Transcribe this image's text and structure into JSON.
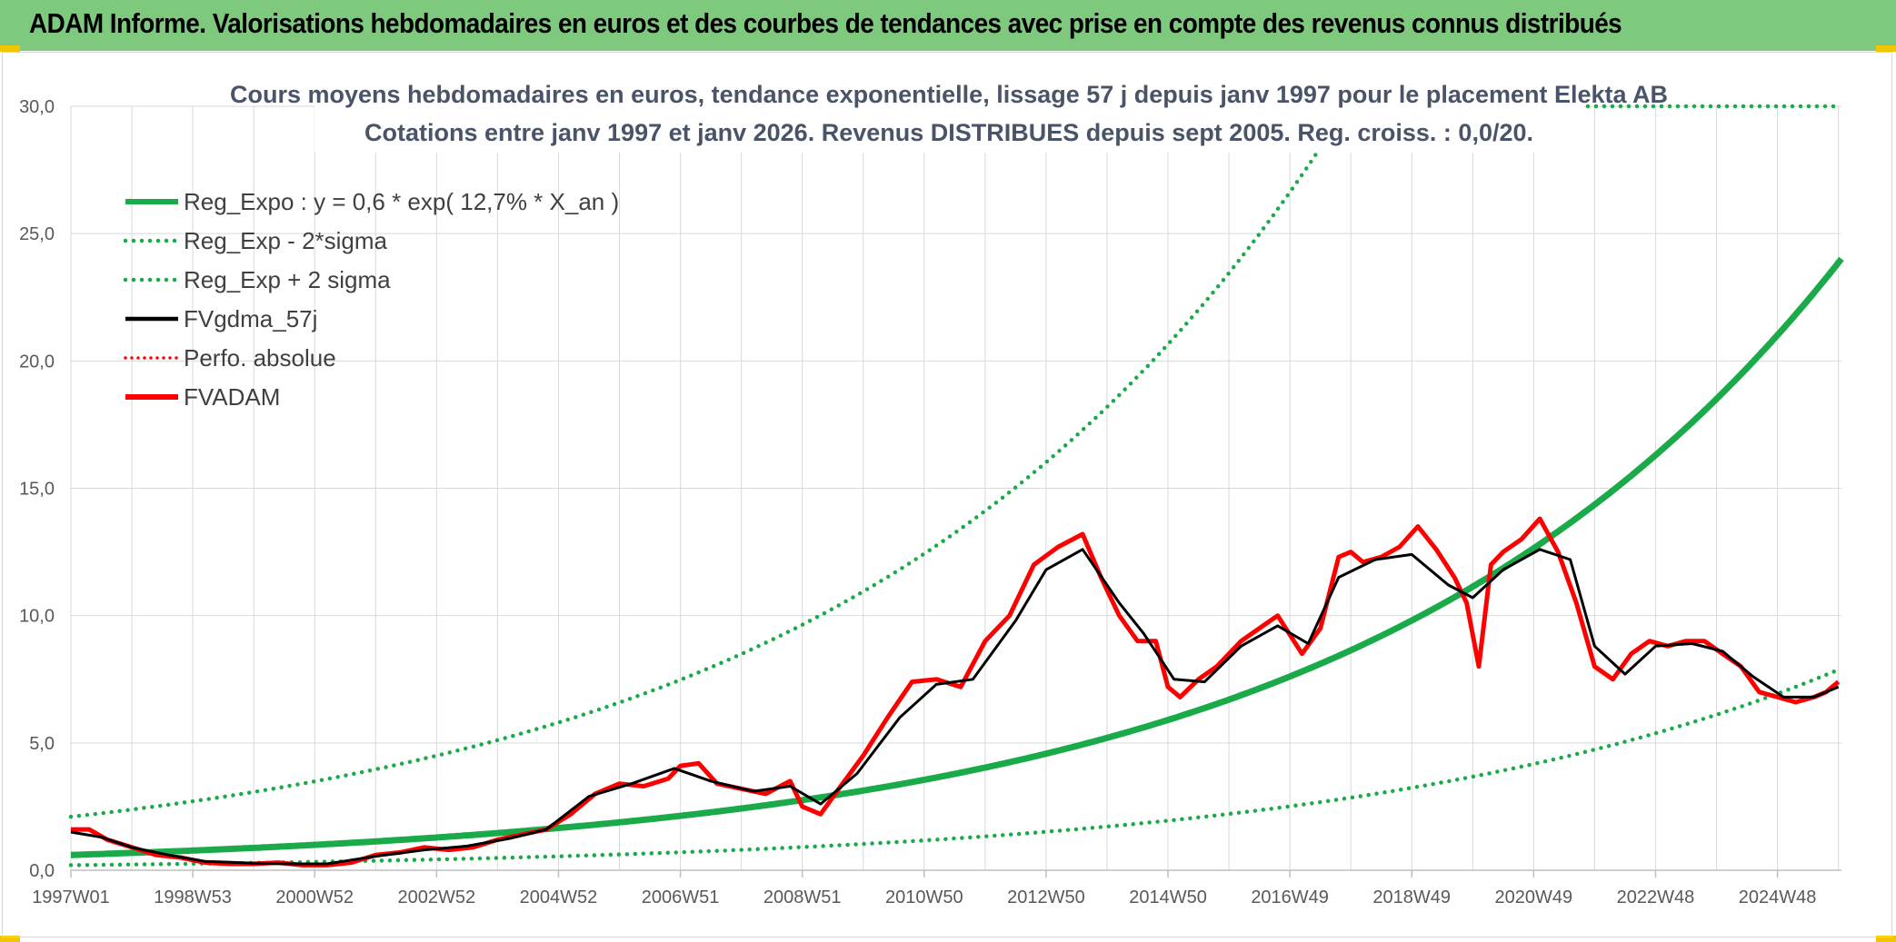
{
  "page": {
    "banner_title": "ADAM Informe. Valorisations hebdomadaires en euros et des courbes de tendances avec prise en compte des revenus connus distribués"
  },
  "colors": {
    "banner": "#7fc97f",
    "reg_expo": "#1aaa4a",
    "fvgdma": "#000000",
    "fvadam": "#ff0000",
    "perfo": "#ff0000",
    "grid": "#d9d9d9"
  },
  "chart_data": {
    "type": "line",
    "title": "Cours moyens hebdomadaires en euros, tendance exponentielle, lissage 57 j depuis janv 1997 pour le placement Elekta AB",
    "subtitle": "Cotations entre janv 1997 et janv 2026. Revenus DISTRIBUES depuis sept 2005. Reg. croiss. : 0,0/20.",
    "xlabel": "",
    "ylabel": "",
    "x_range": [
      1997.0,
      2026.05
    ],
    "ylim": [
      0,
      30
    ],
    "y_ticks": [
      "0,0",
      "5,0",
      "10,0",
      "15,0",
      "20,0",
      "25,0",
      "30,0"
    ],
    "x_tick_labels": [
      "1997W01",
      "1998W53",
      "2000W52",
      "2002W52",
      "2004W52",
      "2006W51",
      "2008W51",
      "2010W50",
      "2012W50",
      "2014W50",
      "2016W49",
      "2018W49",
      "2020W49",
      "2022W48",
      "2024W48"
    ],
    "x_tick_positions": [
      1997.0,
      1999.0,
      2001.0,
      2003.0,
      2005.0,
      2007.0,
      2009.0,
      2011.0,
      2013.0,
      2015.0,
      2017.0,
      2019.0,
      2021.0,
      2023.0,
      2025.0
    ],
    "legend": [
      "Reg_Expo : y = 0,6 * exp( 12,7% *  X_an )",
      "Reg_Exp - 2*sigma",
      "Reg_Exp + 2 sigma",
      "FVgdma_57j",
      "Perfo. absolue",
      "FVADAM"
    ],
    "regression": {
      "a": 0.6,
      "rate": 0.127,
      "start": 1997.0,
      "lower_factor": 0.33,
      "upper_factor": 3.5
    },
    "series": [
      {
        "name": "FVADAM",
        "x": [
          1997.0,
          1997.3,
          1997.6,
          1998.0,
          1998.4,
          1998.8,
          1999.2,
          1999.6,
          2000.0,
          2000.4,
          2000.8,
          2001.2,
          2001.6,
          2002.0,
          2002.4,
          2002.8,
          2003.2,
          2003.6,
          2004.0,
          2004.4,
          2004.8,
          2005.2,
          2005.6,
          2006.0,
          2006.4,
          2006.8,
          2007.0,
          2007.3,
          2007.6,
          2008.0,
          2008.4,
          2008.8,
          2009.0,
          2009.3,
          2009.6,
          2010.0,
          2010.4,
          2010.8,
          2011.2,
          2011.6,
          2012.0,
          2012.4,
          2012.8,
          2013.2,
          2013.6,
          2013.9,
          2014.2,
          2014.5,
          2014.8,
          2015.0,
          2015.2,
          2015.5,
          2015.8,
          2016.2,
          2016.5,
          2016.8,
          2017.2,
          2017.5,
          2017.8,
          2018.0,
          2018.2,
          2018.5,
          2018.8,
          2019.1,
          2019.4,
          2019.7,
          2019.9,
          2020.1,
          2020.3,
          2020.5,
          2020.8,
          2021.1,
          2021.4,
          2021.7,
          2022.0,
          2022.3,
          2022.6,
          2022.9,
          2023.2,
          2023.5,
          2023.8,
          2024.1,
          2024.4,
          2024.7,
          2025.0,
          2025.3,
          2025.6,
          2025.8,
          2026.0
        ],
        "values": [
          1.6,
          1.6,
          1.2,
          0.9,
          0.6,
          0.5,
          0.3,
          0.25,
          0.25,
          0.3,
          0.2,
          0.2,
          0.3,
          0.6,
          0.7,
          0.9,
          0.8,
          0.9,
          1.2,
          1.4,
          1.6,
          2.2,
          3.0,
          3.4,
          3.3,
          3.6,
          4.1,
          4.2,
          3.4,
          3.2,
          3.0,
          3.5,
          2.5,
          2.2,
          3.2,
          4.5,
          6.0,
          7.4,
          7.5,
          7.2,
          9.0,
          10.0,
          12.0,
          12.7,
          13.2,
          11.5,
          10.0,
          9.0,
          9.0,
          7.2,
          6.8,
          7.5,
          8.0,
          9.0,
          9.5,
          10.0,
          8.5,
          9.5,
          12.3,
          12.5,
          12.1,
          12.3,
          12.7,
          13.5,
          12.6,
          11.5,
          10.5,
          8.0,
          12.0,
          12.5,
          13.0,
          13.8,
          12.5,
          10.5,
          8.0,
          7.5,
          8.5,
          9.0,
          8.8,
          9.0,
          9.0,
          8.5,
          8.0,
          7.0,
          6.8,
          6.6,
          6.8,
          7.0,
          7.4
        ]
      },
      {
        "name": "FVgdma_57j",
        "x": [
          1997.0,
          1997.5,
          1998.0,
          1998.6,
          1999.2,
          2000.0,
          2000.6,
          2001.2,
          2002.0,
          2002.8,
          2003.5,
          2004.2,
          2004.8,
          2005.5,
          2006.2,
          2006.9,
          2007.5,
          2008.2,
          2008.8,
          2009.3,
          2009.9,
          2010.6,
          2011.2,
          2011.8,
          2012.5,
          2013.0,
          2013.6,
          2014.2,
          2014.6,
          2015.1,
          2015.6,
          2016.2,
          2016.8,
          2017.3,
          2017.8,
          2018.4,
          2019.0,
          2019.6,
          2020.0,
          2020.5,
          2021.1,
          2021.6,
          2022.0,
          2022.5,
          2023.0,
          2023.6,
          2024.1,
          2024.6,
          2025.1,
          2025.6,
          2026.0
        ],
        "values": [
          1.5,
          1.3,
          0.9,
          0.6,
          0.35,
          0.28,
          0.25,
          0.25,
          0.55,
          0.8,
          0.95,
          1.25,
          1.6,
          2.9,
          3.4,
          4.0,
          3.5,
          3.1,
          3.3,
          2.6,
          3.8,
          6.0,
          7.3,
          7.5,
          9.8,
          11.8,
          12.6,
          10.5,
          9.3,
          7.5,
          7.4,
          8.8,
          9.6,
          8.9,
          11.5,
          12.2,
          12.4,
          11.2,
          10.7,
          11.8,
          12.6,
          12.2,
          8.8,
          7.7,
          8.8,
          8.9,
          8.6,
          7.6,
          6.8,
          6.8,
          7.2
        ]
      }
    ]
  }
}
